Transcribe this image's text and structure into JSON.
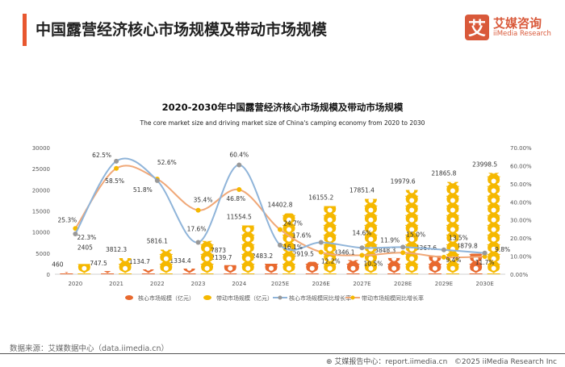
{
  "header": {
    "title": "中国露营经济核心市场规模及带动市场规模",
    "logo_mark": "艾",
    "logo_cn": "艾媒咨询",
    "logo_en": "iiMedia Research"
  },
  "footer": {
    "source": "数据来源：艾媒数据中心（data.iimedia.cn）",
    "report": "艾媒报告中心：report.iimedia.cn",
    "copyright": "©2025  iiMedia Research  Inc",
    "globe_icon": "globe-icon"
  },
  "colors": {
    "core": "#e8692e",
    "driving": "#f5b800",
    "core_rate": "#8fb4d9",
    "driving_rate": "#f0a878",
    "core_point": "#999999",
    "driving_point": "#f5b800"
  },
  "chart_data": {
    "type": "bar+line",
    "title": "2020-2030年中国露营经济核心市场规模及带动市场规模",
    "subtitle": "The core market size and driving market size of China's camping economy from 2020 to 2030",
    "categories": [
      "2020",
      "2021",
      "2022",
      "2023",
      "2024",
      "2025E",
      "2026E",
      "2027E",
      "2028E",
      "2029E",
      "2030E"
    ],
    "y_left": {
      "range": [
        0,
        30000
      ],
      "ticks": [
        "0",
        "5000",
        "10000",
        "15000",
        "20000",
        "25000",
        "30000"
      ]
    },
    "y_right": {
      "range": [
        0,
        70
      ],
      "ticks": [
        "0.00%",
        "10.00%",
        "20.00%",
        "30.00%",
        "40.00%",
        "50.00%",
        "60.00%",
        "70.00%"
      ]
    },
    "grid": false,
    "legend_position": "bottom",
    "series": [
      {
        "name": "核心市场规模（亿元）",
        "kind": "pictograph-bar",
        "axis": "left",
        "values": [
          460,
          747.5,
          1134.7,
          1334.4,
          2139.7,
          2483.2,
          2919.5,
          3346.1,
          3848.3,
          4367.6,
          4879.8
        ],
        "labels": [
          "460",
          "747.5",
          "1134.7",
          "1334.4",
          "2139.7",
          "2483.2",
          "2919.5",
          "3346.1",
          "3848.3",
          "4367.6",
          "4879.8"
        ]
      },
      {
        "name": "带动市场规模（亿元）",
        "kind": "pictograph-bar",
        "axis": "left",
        "values": [
          2405,
          3812.3,
          5816.1,
          7873,
          11554.5,
          14402.8,
          16155.2,
          17851.4,
          19979.6,
          21865.8,
          23998.5
        ],
        "labels": [
          "2405",
          "3812.3",
          "5816.1",
          "7873",
          "11554.5",
          "14402.8",
          "16155.2",
          "17851.4",
          "19979.6",
          "21865.8",
          "23998.5"
        ]
      },
      {
        "name": "核心市场规模同比增长率",
        "kind": "line",
        "axis": "right",
        "values": [
          22.3,
          62.5,
          51.8,
          17.6,
          60.4,
          16.1,
          17.6,
          14.6,
          15.0,
          13.5,
          11.7
        ],
        "labels": [
          "22.3%",
          "62.5%",
          "51.8%",
          "17.6%",
          "60.4%",
          "16.1%",
          "17.6%",
          "14.6%",
          "15.0%",
          "13.5%",
          "11.7%"
        ]
      },
      {
        "name": "带动市场规模同比增长率",
        "kind": "line",
        "axis": "right",
        "values": [
          25.3,
          58.5,
          52.6,
          35.4,
          46.8,
          24.7,
          12.2,
          10.5,
          11.9,
          9.4,
          9.8
        ],
        "labels": [
          "25.3%",
          "58.5%",
          "52.6%",
          "35.4%",
          "46.8%",
          "24.7%",
          "12.2%",
          "10.5%",
          "11.9%",
          "9.4%",
          "9.8%"
        ]
      }
    ]
  }
}
